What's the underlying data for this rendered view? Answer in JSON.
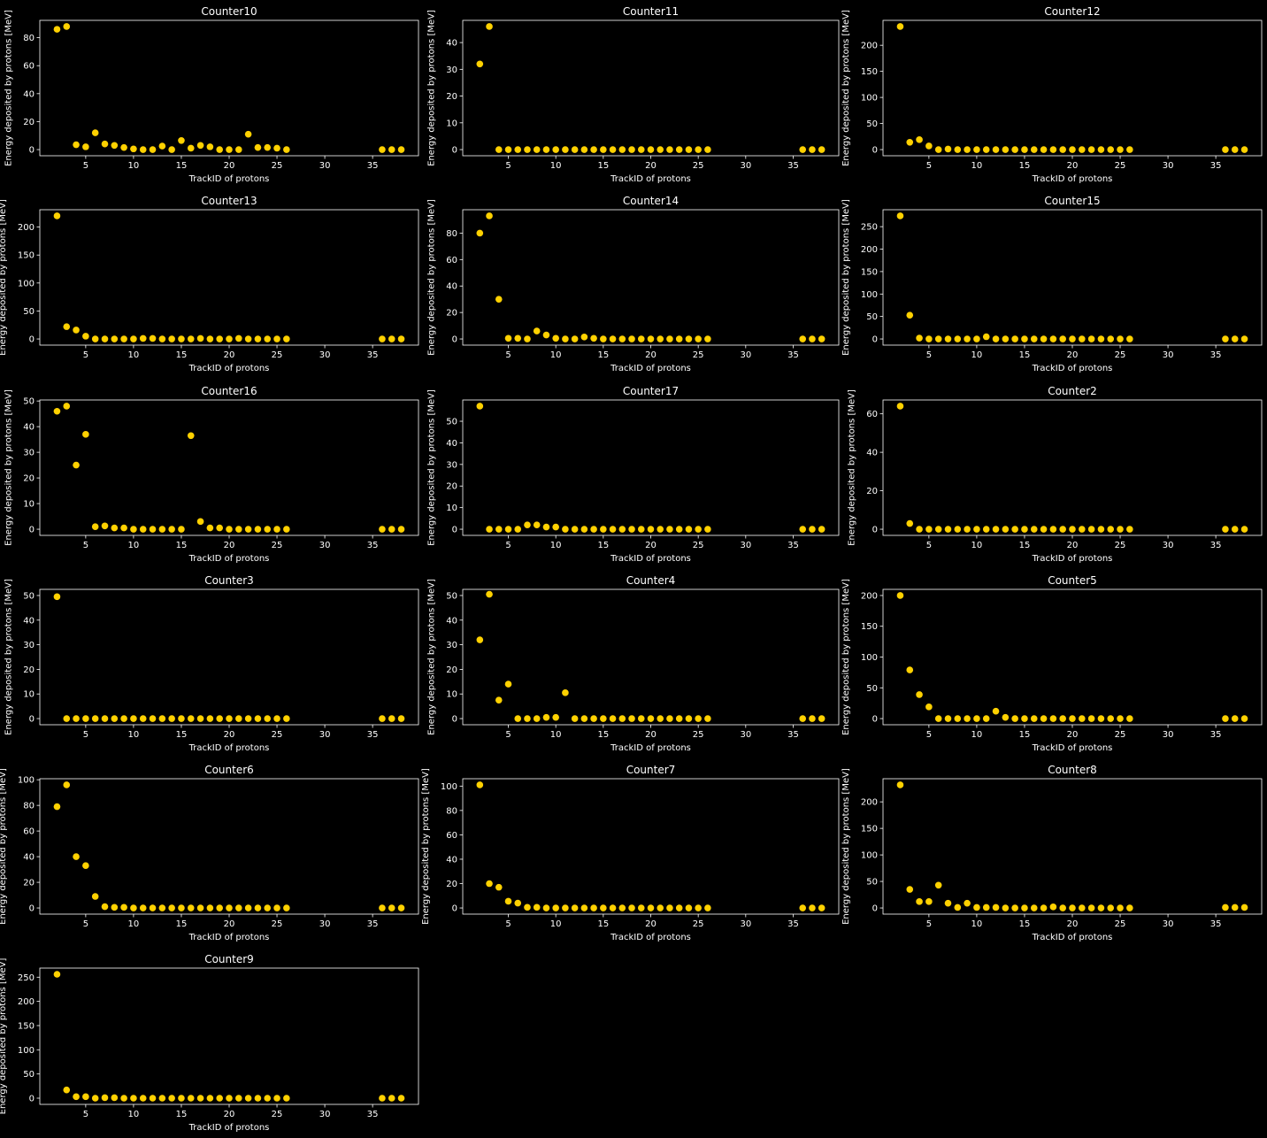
{
  "style": {
    "background": "#000000",
    "axes_color": "#ffffff",
    "text_color": "#ffffff",
    "marker_color": "#ffd100"
  },
  "chart_data": [
    {
      "type": "scatter",
      "title": "Counter10",
      "xlabel": "TrackID of protons",
      "ylabel": "Energy deposited by protons [MeV]",
      "xlim": [
        0.2,
        39.8
      ],
      "xticks": [
        5,
        10,
        15,
        20,
        25,
        30,
        35
      ],
      "ylim": [
        -4.4,
        92.4
      ],
      "yticks": [
        0,
        20,
        40,
        60,
        80
      ],
      "x": [
        2,
        3,
        4,
        5,
        6,
        7,
        8,
        9,
        10,
        11,
        12,
        13,
        14,
        15,
        16,
        17,
        18,
        19,
        20,
        21,
        22,
        23,
        24,
        25,
        26,
        36,
        37,
        38
      ],
      "y": [
        86,
        88,
        3.5,
        2,
        12,
        4,
        3,
        1.5,
        0.5,
        0,
        0,
        2.5,
        0,
        6.5,
        1,
        3,
        2,
        0,
        0,
        0,
        11,
        1.5,
        1.5,
        1,
        0,
        0,
        0,
        0
      ]
    },
    {
      "type": "scatter",
      "title": "Counter11",
      "xlabel": "TrackID of protons",
      "ylabel": "Energy deposited by protons [MeV]",
      "xlim": [
        0.2,
        39.8
      ],
      "xticks": [
        5,
        10,
        15,
        20,
        25,
        30,
        35
      ],
      "ylim": [
        -2.3,
        48.3
      ],
      "yticks": [
        0,
        10,
        20,
        30,
        40
      ],
      "x": [
        2,
        3,
        4,
        5,
        6,
        7,
        8,
        9,
        10,
        11,
        12,
        13,
        14,
        15,
        16,
        17,
        18,
        19,
        20,
        21,
        22,
        23,
        24,
        25,
        26,
        36,
        37,
        38
      ],
      "y": [
        32,
        46,
        0,
        0,
        0,
        0,
        0,
        0,
        0,
        0,
        0,
        0,
        0,
        0,
        0,
        0,
        0,
        0,
        0,
        0,
        0,
        0,
        0,
        0,
        0,
        0,
        0,
        0
      ]
    },
    {
      "type": "scatter",
      "title": "Counter12",
      "xlabel": "TrackID of protons",
      "ylabel": "Energy deposited by protons [MeV]",
      "xlim": [
        0.2,
        39.8
      ],
      "xticks": [
        5,
        10,
        15,
        20,
        25,
        30,
        35
      ],
      "ylim": [
        -11.8,
        247.8
      ],
      "yticks": [
        0,
        50,
        100,
        150,
        200
      ],
      "x": [
        2,
        3,
        4,
        5,
        6,
        7,
        8,
        9,
        10,
        11,
        12,
        13,
        14,
        15,
        16,
        17,
        18,
        19,
        20,
        21,
        22,
        23,
        24,
        25,
        26,
        36,
        37,
        38
      ],
      "y": [
        236,
        14,
        19,
        7,
        0,
        1,
        0,
        0,
        0,
        0,
        0,
        0,
        0,
        0,
        0,
        0,
        0,
        0,
        0,
        0,
        0,
        0,
        0,
        0,
        0,
        0,
        0,
        0
      ]
    },
    {
      "type": "scatter",
      "title": "Counter13",
      "xlabel": "TrackID of protons",
      "ylabel": "Energy deposited by protons [MeV]",
      "xlim": [
        0.2,
        39.8
      ],
      "xticks": [
        5,
        10,
        15,
        20,
        25,
        30,
        35
      ],
      "ylim": [
        -11,
        231
      ],
      "yticks": [
        0,
        50,
        100,
        150,
        200
      ],
      "x": [
        2,
        3,
        4,
        5,
        6,
        7,
        8,
        9,
        10,
        11,
        12,
        13,
        14,
        15,
        16,
        17,
        18,
        19,
        20,
        21,
        22,
        23,
        24,
        25,
        26,
        36,
        37,
        38
      ],
      "y": [
        220,
        22,
        16,
        5,
        0,
        0,
        0,
        0,
        0,
        1,
        1,
        0,
        0,
        0,
        0,
        1,
        0,
        0,
        0,
        1,
        0,
        0,
        0,
        0,
        0,
        0,
        0,
        0
      ]
    },
    {
      "type": "scatter",
      "title": "Counter14",
      "xlabel": "TrackID of protons",
      "ylabel": "Energy deposited by protons [MeV]",
      "xlim": [
        0.2,
        39.8
      ],
      "xticks": [
        5,
        10,
        15,
        20,
        25,
        30,
        35
      ],
      "ylim": [
        -4.65,
        97.65
      ],
      "yticks": [
        0,
        20,
        40,
        60,
        80
      ],
      "x": [
        2,
        3,
        4,
        5,
        6,
        7,
        8,
        9,
        10,
        11,
        12,
        13,
        14,
        15,
        16,
        17,
        18,
        19,
        20,
        21,
        22,
        23,
        24,
        25,
        26,
        36,
        37,
        38
      ],
      "y": [
        80,
        93,
        30,
        0.5,
        0.5,
        0,
        6,
        3,
        0.5,
        0,
        0,
        1.5,
        0.5,
        0,
        0,
        0,
        0,
        0,
        0,
        0,
        0,
        0,
        0,
        0,
        0,
        0,
        0,
        0
      ]
    },
    {
      "type": "scatter",
      "title": "Counter15",
      "xlabel": "TrackID of protons",
      "ylabel": "Energy deposited by protons [MeV]",
      "xlim": [
        0.2,
        39.8
      ],
      "xticks": [
        0,
        5,
        10,
        15,
        20,
        25,
        30,
        35
      ],
      "ylim": [
        -13.7,
        287.7
      ],
      "yticks": [
        0,
        50,
        100,
        150,
        200,
        250
      ],
      "x": [
        2,
        3,
        4,
        5,
        6,
        7,
        8,
        9,
        10,
        11,
        12,
        13,
        14,
        15,
        16,
        17,
        18,
        19,
        20,
        21,
        22,
        23,
        24,
        25,
        26,
        36,
        37,
        38
      ],
      "y": [
        274,
        53,
        2,
        0,
        0,
        0,
        0,
        0,
        0,
        5,
        0,
        0,
        0,
        0,
        0,
        0,
        0,
        0,
        0,
        0,
        0,
        0,
        0,
        0,
        0,
        0,
        0,
        0
      ]
    },
    {
      "type": "scatter",
      "title": "Counter16",
      "xlabel": "TrackID of protons",
      "ylabel": "Energy deposited by protons [MeV]",
      "xlim": [
        0.2,
        39.8
      ],
      "xticks": [
        5,
        10,
        15,
        20,
        25,
        30,
        35
      ],
      "ylim": [
        -2.4,
        50.4
      ],
      "yticks": [
        0,
        10,
        20,
        30,
        40,
        50
      ],
      "x": [
        2,
        3,
        4,
        5,
        6,
        7,
        8,
        9,
        10,
        11,
        12,
        13,
        14,
        15,
        16,
        17,
        18,
        19,
        20,
        21,
        22,
        23,
        24,
        25,
        26,
        36,
        37,
        38
      ],
      "y": [
        46,
        48,
        25,
        37,
        1,
        1.3,
        0.5,
        0.5,
        0,
        0,
        0,
        0,
        0,
        0,
        36.5,
        3,
        0.5,
        0.5,
        0,
        0,
        0,
        0,
        0,
        0,
        0,
        0,
        0,
        0
      ]
    },
    {
      "type": "scatter",
      "title": "Counter17",
      "xlabel": "TrackID of protons",
      "ylabel": "Energy deposited by protons [MeV]",
      "xlim": [
        0.2,
        39.8
      ],
      "xticks": [
        5,
        10,
        15,
        20,
        25,
        30,
        35
      ],
      "ylim": [
        -2.85,
        59.85
      ],
      "yticks": [
        0,
        10,
        20,
        30,
        40,
        50
      ],
      "x": [
        2,
        3,
        4,
        5,
        6,
        7,
        8,
        9,
        10,
        11,
        12,
        13,
        14,
        15,
        16,
        17,
        18,
        19,
        20,
        21,
        22,
        23,
        24,
        25,
        26,
        36,
        37,
        38
      ],
      "y": [
        57,
        0,
        0,
        0,
        0,
        2,
        2,
        1,
        1,
        0,
        0,
        0,
        0,
        0,
        0,
        0,
        0,
        0,
        0,
        0,
        0,
        0,
        0,
        0,
        0,
        0,
        0,
        0
      ]
    },
    {
      "type": "scatter",
      "title": "Counter2",
      "xlabel": "TrackID of protons",
      "ylabel": "Energy deposited by protons [MeV]",
      "xlim": [
        0.2,
        39.8
      ],
      "xticks": [
        5,
        10,
        15,
        20,
        25,
        30,
        35
      ],
      "ylim": [
        -3.2,
        67.2
      ],
      "yticks": [
        0,
        20,
        40,
        60
      ],
      "x": [
        2,
        3,
        4,
        5,
        6,
        7,
        8,
        9,
        10,
        11,
        12,
        13,
        14,
        15,
        16,
        17,
        18,
        19,
        20,
        21,
        22,
        23,
        24,
        25,
        26,
        36,
        37,
        38
      ],
      "y": [
        64,
        3,
        0,
        0,
        0,
        0,
        0,
        0,
        0,
        0,
        0,
        0,
        0,
        0,
        0,
        0,
        0,
        0,
        0,
        0,
        0,
        0,
        0,
        0,
        0,
        0,
        0,
        0
      ]
    },
    {
      "type": "scatter",
      "title": "Counter3",
      "xlabel": "TrackID of protons",
      "ylabel": "Energy deposited by protons [MeV]",
      "xlim": [
        0.2,
        39.8
      ],
      "xticks": [
        5,
        10,
        15,
        20,
        25,
        30,
        35
      ],
      "ylim": [
        -2.5,
        52.5
      ],
      "yticks": [
        0,
        10,
        20,
        30,
        40,
        50
      ],
      "x": [
        2,
        3,
        4,
        5,
        6,
        7,
        8,
        9,
        10,
        11,
        12,
        13,
        14,
        15,
        16,
        17,
        18,
        19,
        20,
        21,
        22,
        23,
        24,
        25,
        26,
        36,
        37,
        38
      ],
      "y": [
        49.5,
        0,
        0,
        0,
        0,
        0,
        0,
        0,
        0,
        0,
        0,
        0,
        0,
        0,
        0,
        0,
        0,
        0,
        0,
        0,
        0,
        0,
        0,
        0,
        0,
        0,
        0,
        0
      ]
    },
    {
      "type": "scatter",
      "title": "Counter4",
      "xlabel": "TrackID of protons",
      "ylabel": "Energy deposited by protons [MeV]",
      "xlim": [
        0.2,
        39.8
      ],
      "xticks": [
        5,
        10,
        15,
        20,
        25,
        30,
        35
      ],
      "ylim": [
        -2.5,
        52.5
      ],
      "yticks": [
        0,
        10,
        20,
        30,
        40,
        50
      ],
      "x": [
        2,
        3,
        4,
        5,
        6,
        7,
        8,
        9,
        10,
        11,
        12,
        13,
        14,
        15,
        16,
        17,
        18,
        19,
        20,
        21,
        22,
        23,
        24,
        25,
        26,
        36,
        37,
        38
      ],
      "y": [
        32,
        50.5,
        7.5,
        14,
        0,
        0,
        0,
        0.5,
        0.5,
        10.5,
        0,
        0,
        0,
        0,
        0,
        0,
        0,
        0,
        0,
        0,
        0,
        0,
        0,
        0,
        0,
        0,
        0,
        0
      ]
    },
    {
      "type": "scatter",
      "title": "Counter5",
      "xlabel": "TrackID of protons",
      "ylabel": "Energy deposited by protons [MeV]",
      "xlim": [
        0.2,
        39.8
      ],
      "xticks": [
        5,
        10,
        15,
        20,
        25,
        30,
        35
      ],
      "ylim": [
        -10,
        210
      ],
      "yticks": [
        0,
        50,
        100,
        150,
        200
      ],
      "x": [
        2,
        3,
        4,
        5,
        6,
        7,
        8,
        9,
        10,
        11,
        12,
        13,
        14,
        15,
        16,
        17,
        18,
        19,
        20,
        21,
        22,
        23,
        24,
        25,
        26,
        36,
        37,
        38
      ],
      "y": [
        200,
        79,
        39,
        19,
        0,
        0,
        0,
        0,
        0,
        0,
        12,
        2,
        0,
        0,
        0,
        0,
        0,
        0,
        0,
        0,
        0,
        0,
        0,
        0,
        0,
        0,
        0,
        0
      ]
    },
    {
      "type": "scatter",
      "title": "Counter6",
      "xlabel": "TrackID of protons",
      "ylabel": "Energy deposited by protons [MeV]",
      "xlim": [
        0.2,
        39.8
      ],
      "xticks": [
        5,
        10,
        15,
        20,
        25,
        30,
        35
      ],
      "ylim": [
        -4.8,
        100.8
      ],
      "yticks": [
        0,
        20,
        40,
        60,
        80,
        100
      ],
      "x": [
        2,
        3,
        4,
        5,
        6,
        7,
        8,
        9,
        10,
        11,
        12,
        13,
        14,
        15,
        16,
        17,
        18,
        19,
        20,
        21,
        22,
        23,
        24,
        25,
        26,
        36,
        37,
        38
      ],
      "y": [
        79,
        96,
        40,
        33,
        9,
        1,
        0.5,
        0.5,
        0,
        0,
        0,
        0,
        0,
        0,
        0,
        0,
        0,
        0,
        0,
        0,
        0,
        0,
        0,
        0,
        0,
        0,
        0,
        0
      ]
    },
    {
      "type": "scatter",
      "title": "Counter7",
      "xlabel": "TrackID of protons",
      "ylabel": "Energy deposited by protons [MeV]",
      "xlim": [
        0.2,
        39.8
      ],
      "xticks": [
        5,
        10,
        15,
        20,
        25,
        30,
        35
      ],
      "ylim": [
        -5.05,
        106.05
      ],
      "yticks": [
        0,
        20,
        40,
        60,
        80,
        100
      ],
      "x": [
        2,
        3,
        4,
        5,
        6,
        7,
        8,
        9,
        10,
        11,
        12,
        13,
        14,
        15,
        16,
        17,
        18,
        19,
        20,
        21,
        22,
        23,
        24,
        25,
        26,
        36,
        37,
        38
      ],
      "y": [
        101,
        20,
        17,
        5.5,
        4,
        0.5,
        0.5,
        0,
        0,
        0,
        0,
        0,
        0,
        0,
        0,
        0,
        0,
        0,
        0,
        0,
        0,
        0,
        0,
        0,
        0,
        0,
        0,
        0
      ]
    },
    {
      "type": "scatter",
      "title": "Counter8",
      "xlabel": "TrackID of protons",
      "ylabel": "Energy deposited by protons [MeV]",
      "xlim": [
        0.2,
        39.8
      ],
      "xticks": [
        5,
        10,
        15,
        20,
        25,
        30,
        35
      ],
      "ylim": [
        -11.6,
        243.6
      ],
      "yticks": [
        0,
        50,
        100,
        150,
        200
      ],
      "x": [
        2,
        3,
        4,
        5,
        6,
        7,
        8,
        9,
        10,
        11,
        12,
        13,
        14,
        15,
        16,
        17,
        18,
        19,
        20,
        21,
        22,
        23,
        24,
        25,
        26,
        36,
        37,
        38
      ],
      "y": [
        232,
        35,
        12,
        12,
        43,
        9,
        1,
        9,
        1,
        1,
        1,
        0,
        0,
        0,
        0,
        0,
        2,
        0,
        0,
        0,
        0,
        0,
        0,
        0,
        0,
        1,
        1,
        1
      ]
    },
    {
      "type": "scatter",
      "title": "Counter9",
      "xlabel": "TrackID of protons",
      "ylabel": "Energy deposited by protons [MeV]",
      "xlim": [
        0.2,
        39.8
      ],
      "xticks": [
        5,
        10,
        15,
        20,
        25,
        30,
        35
      ],
      "ylim": [
        -12.8,
        268.8
      ],
      "yticks": [
        0,
        50,
        100,
        150,
        200,
        250
      ],
      "x": [
        2,
        3,
        4,
        5,
        6,
        7,
        8,
        9,
        10,
        11,
        12,
        13,
        14,
        15,
        16,
        17,
        18,
        19,
        20,
        21,
        22,
        23,
        24,
        25,
        26,
        36,
        37,
        38
      ],
      "y": [
        256,
        17,
        3,
        3,
        0,
        1,
        1,
        0,
        0,
        0,
        0,
        0,
        0,
        0,
        0,
        0,
        0,
        0,
        0,
        0,
        0,
        0,
        0,
        0,
        0,
        0,
        0,
        0
      ]
    }
  ]
}
